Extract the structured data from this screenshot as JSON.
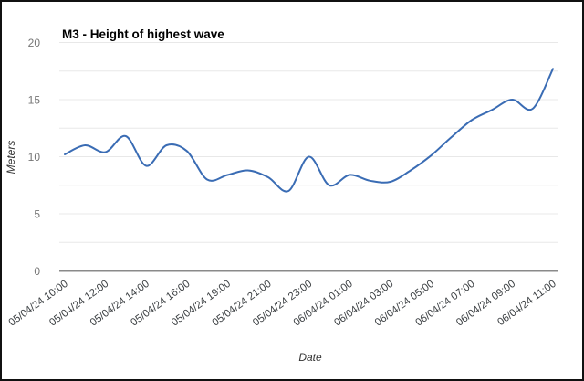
{
  "chart": {
    "title": "M3 - Height of highest wave",
    "y_axis_title": "Meters",
    "x_axis_title": "Date"
  },
  "chart_data": {
    "type": "line",
    "title": "M3 - Height of highest wave",
    "xlabel": "Date",
    "ylabel": "Meters",
    "x": [
      "05/04/24 10:00",
      "05/04/24 11:00",
      "05/04/24 12:00",
      "05/04/24 13:00",
      "05/04/24 14:00",
      "05/04/24 15:00",
      "05/04/24 16:00",
      "05/04/24 18:00",
      "05/04/24 19:00",
      "05/04/24 20:00",
      "05/04/24 21:00",
      "05/04/24 22:00",
      "05/04/24 23:00",
      "06/04/24 00:00",
      "06/04/24 01:00",
      "06/04/24 02:00",
      "06/04/24 03:00",
      "06/04/24 04:00",
      "06/04/24 05:00",
      "06/04/24 06:00",
      "06/04/24 07:00",
      "06/04/24 08:00",
      "06/04/24 09:00",
      "06/04/24 10:00",
      "06/04/24 11:00"
    ],
    "values": [
      10.2,
      11.0,
      10.4,
      11.8,
      9.2,
      11.0,
      10.5,
      8.0,
      8.4,
      8.8,
      8.2,
      7.0,
      10.0,
      7.5,
      8.4,
      7.9,
      7.8,
      8.8,
      10.1,
      11.7,
      13.2,
      14.1,
      15.0,
      14.2,
      17.7
    ],
    "visible_x_tick_labels": [
      "05/04/24 10:00",
      "05/04/24 12:00",
      "05/04/24 14:00",
      "05/04/24 16:00",
      "05/04/24 19:00",
      "05/04/24 21:00",
      "05/04/24 23:00",
      "06/04/24 01:00",
      "06/04/24 03:00",
      "06/04/24 05:00",
      "06/04/24 07:00",
      "06/04/24 09:00",
      "06/04/24 11:00"
    ],
    "x_tick_every_n_points": 2,
    "y_tick_labels": [
      "0",
      "5",
      "10",
      "15",
      "20"
    ],
    "ylim": [
      0,
      20
    ],
    "grid": "horizontal minor gridlines every 2.5, labeled every 5",
    "legend_position": "none",
    "smooth": true,
    "colors": {
      "line": "#3a6cb4",
      "gridline": "#e8e8e8",
      "axis_line": "#8a8a8a",
      "y_tick_text": "#757575",
      "x_tick_text": "#3c4043",
      "title_text": "#000000",
      "axis_title_text": "#333333",
      "background": "#ffffff",
      "frame_border": "#111111"
    }
  }
}
